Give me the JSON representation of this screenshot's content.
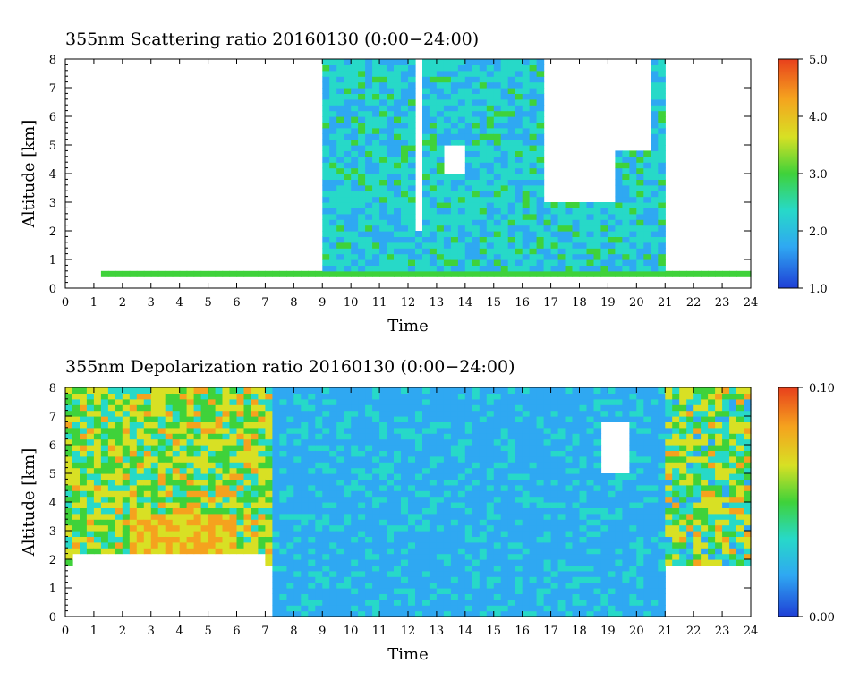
{
  "chart_data": [
    {
      "type": "heatmap",
      "title": "355nm Scattering ratio  20160130 (0:00−24:00)",
      "xlabel": "Time",
      "ylabel": "Altitude [km]",
      "xlim": [
        0,
        24
      ],
      "ylim": [
        0,
        8
      ],
      "x_ticks": [
        "0",
        "1",
        "2",
        "3",
        "4",
        "5",
        "6",
        "7",
        "8",
        "9",
        "10",
        "11",
        "12",
        "13",
        "14",
        "15",
        "16",
        "17",
        "18",
        "19",
        "20",
        "21",
        "22",
        "23",
        "24"
      ],
      "y_ticks": [
        "0",
        "1",
        "2",
        "3",
        "4",
        "5",
        "6",
        "7",
        "8"
      ],
      "colorbar": {
        "range": [
          1.0,
          5.0
        ],
        "tick_labels": [
          "1.0",
          "2.0",
          "3.0",
          "4.0",
          "5.0"
        ],
        "colors": [
          "#1f3fd6",
          "#2fa8f2",
          "#27d9c8",
          "#3fd23a",
          "#d8e024",
          "#f5a21e",
          "#e8401c"
        ]
      },
      "white_regions": [
        {
          "time": [
            0.0,
            7.2
          ],
          "altitude_above_km": [
            0.4,
            0.4,
            0.6,
            0.9,
            1.0,
            0.8,
            1.2,
            1.4,
            1.5
          ]
        },
        {
          "time": [
            7.6,
            9.0
          ],
          "altitude": [
            2.0,
            8.0
          ]
        },
        {
          "time": [
            12.2,
            12.6
          ],
          "altitude": [
            2.0,
            8.0
          ]
        },
        {
          "time": [
            16.7,
            20.6
          ],
          "altitude": [
            4.8,
            8.0
          ]
        },
        {
          "time": [
            21.0,
            24.0
          ],
          "altitude_above_km": [
            1.9,
            1.6,
            1.4,
            1.1,
            0.6
          ]
        }
      ],
      "features": [
        {
          "time": [
            9.0,
            21.0
          ],
          "altitude": [
            0.4,
            8.0
          ],
          "value_range": [
            1.5,
            2.8
          ]
        },
        {
          "time": [
            13.3,
            14.1
          ],
          "altitude": [
            4.0,
            4.9
          ],
          "value": "white cloud"
        },
        {
          "time": [
            16.8,
            19.3
          ],
          "altitude": [
            3.0,
            5.5
          ],
          "value": "white cloud"
        },
        {
          "time": [
            0.0,
            24.0
          ],
          "altitude": [
            0.35,
            0.5
          ],
          "value": 3.0
        }
      ]
    },
    {
      "type": "heatmap",
      "title": "355nm Depolarization ratio  20160130 (0:00−24:00)",
      "xlabel": "Time",
      "ylabel": "Altitude [km]",
      "xlim": [
        0,
        24
      ],
      "ylim": [
        0,
        8
      ],
      "x_ticks": [
        "0",
        "1",
        "2",
        "3",
        "4",
        "5",
        "6",
        "7",
        "8",
        "9",
        "10",
        "11",
        "12",
        "13",
        "14",
        "15",
        "16",
        "17",
        "18",
        "19",
        "20",
        "21",
        "22",
        "23",
        "24"
      ],
      "y_ticks": [
        "0",
        "1",
        "2",
        "3",
        "4",
        "5",
        "6",
        "7",
        "8"
      ],
      "colorbar": {
        "range": [
          0.0,
          0.1
        ],
        "tick_labels": [
          "0.00",
          "0.10"
        ],
        "colors": [
          "#1f3fd6",
          "#2fa8f2",
          "#27d9c8",
          "#3fd23a",
          "#d8e024",
          "#f5a21e",
          "#e8401c"
        ]
      },
      "features": [
        {
          "time": [
            0.0,
            7.2
          ],
          "altitude": [
            1.8,
            8.0
          ],
          "value_range": [
            0.03,
            0.08
          ]
        },
        {
          "time": [
            2.2,
            6.0
          ],
          "altitude": [
            2.2,
            3.6
          ],
          "value_range": [
            0.06,
            0.09
          ]
        },
        {
          "time": [
            0.3,
            7.1
          ],
          "altitude": [
            0.9,
            2.2
          ],
          "value": "white"
        },
        {
          "time": [
            7.2,
            21.0
          ],
          "altitude": [
            0.0,
            8.0
          ],
          "value_range": [
            0.01,
            0.03
          ]
        },
        {
          "time": [
            18.7,
            19.8
          ],
          "altitude": [
            5.0,
            6.8
          ],
          "value": "white"
        },
        {
          "time": [
            21.0,
            24.0
          ],
          "altitude": [
            1.8,
            8.0
          ],
          "value_range": [
            0.02,
            0.08
          ]
        }
      ]
    }
  ]
}
